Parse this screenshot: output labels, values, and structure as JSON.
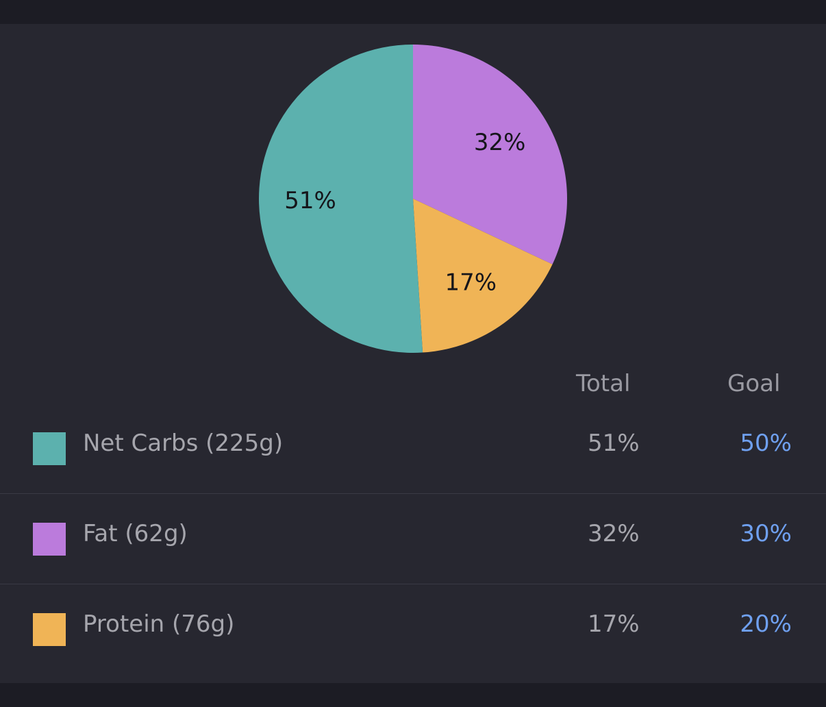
{
  "colors": {
    "net_carbs": "#5cb1ae",
    "fat": "#bb7bdc",
    "protein": "#f0b456",
    "goal_text": "#6fa0f0",
    "card_bg": "#272730",
    "outer_bg": "#1c1c24"
  },
  "chart_data": {
    "type": "pie",
    "categories": [
      "Net Carbs",
      "Fat",
      "Protein"
    ],
    "values": [
      51,
      32,
      17
    ],
    "slice_labels": [
      "51%",
      "32%",
      "17%"
    ],
    "title": "",
    "legend": "table-below"
  },
  "table": {
    "headers": {
      "total": "Total",
      "goal": "Goal"
    },
    "rows": [
      {
        "label": "Net Carbs (225g)",
        "total": "51%",
        "goal": "50%",
        "color": "#5cb1ae"
      },
      {
        "label": "Fat (62g)",
        "total": "32%",
        "goal": "30%",
        "color": "#bb7bdc"
      },
      {
        "label": "Protein (76g)",
        "total": "17%",
        "goal": "20%",
        "color": "#f0b456"
      }
    ]
  }
}
